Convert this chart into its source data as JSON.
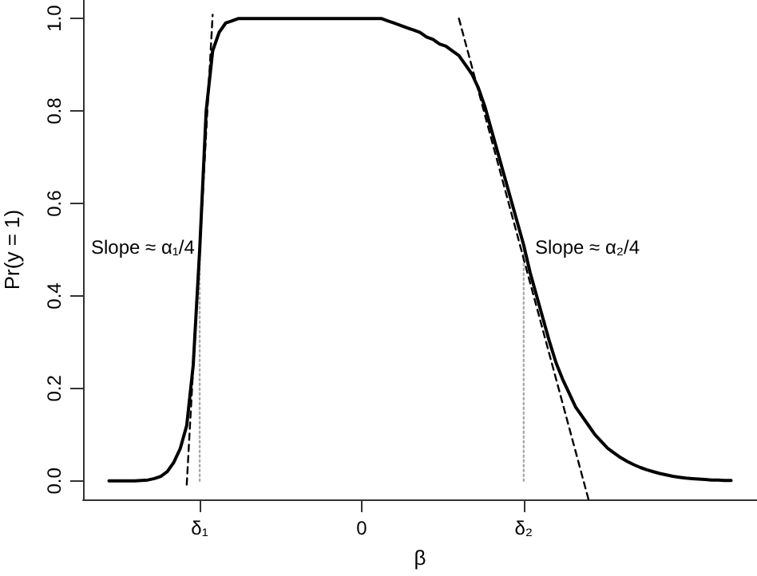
{
  "chart_data": {
    "type": "line",
    "xlabel": "β",
    "ylabel": "Pr(y = 1)",
    "categories": [
      null,
      null,
      null,
      null,
      null,
      null,
      null,
      null,
      null,
      null,
      null,
      null,
      null,
      null,
      null,
      null,
      null,
      null,
      "δ₁",
      null,
      null,
      null,
      null,
      null,
      null,
      null,
      null,
      null,
      null,
      null,
      null,
      null,
      null,
      null,
      null,
      null,
      null,
      null,
      null,
      null,
      null,
      null,
      null,
      "0",
      null,
      null,
      null,
      null,
      null,
      null,
      null,
      null,
      null,
      null,
      null,
      null,
      null,
      null,
      null,
      null,
      null,
      null,
      null,
      null,
      null,
      null,
      null,
      null,
      "δ₂",
      null,
      null,
      null,
      null,
      null,
      null,
      null,
      null,
      null,
      null,
      null,
      null,
      null,
      null,
      null,
      null,
      null,
      null,
      null,
      null,
      null,
      null,
      null,
      null,
      null,
      null,
      null,
      null,
      null,
      null,
      null,
      null,
      null,
      null,
      null,
      null
    ],
    "ylim": [
      -0.04,
      1.04
    ],
    "yticks": [
      {
        "value": 0,
        "label": "0.0"
      },
      0.2,
      0.4,
      0.6,
      0.8,
      {
        "value": 1,
        "label": "1.0"
      }
    ],
    "grid": false,
    "marker": "none",
    "series": [
      {
        "color": "#000000",
        "line_style": "solid",
        "values": [
          null,
          null,
          null,
          null,
          0,
          0,
          0,
          0,
          0,
          0.001,
          0.002,
          0.005,
          0.01,
          0.02,
          0.04,
          0.07,
          0.12,
          0.25,
          0.5,
          0.8,
          0.93,
          0.97,
          0.99,
          0.995,
          1,
          1,
          1,
          1,
          1,
          1,
          1,
          1,
          1,
          1,
          1,
          1,
          1,
          1,
          1,
          1,
          1,
          1,
          1,
          1,
          1,
          1,
          1,
          0.995,
          0.99,
          0.985,
          0.98,
          0.975,
          0.97,
          0.96,
          0.955,
          0.945,
          0.94,
          0.93,
          0.92,
          0.9,
          0.88,
          0.85,
          0.81,
          0.76,
          0.71,
          0.66,
          0.61,
          0.56,
          0.51,
          0.45,
          0.4,
          0.35,
          0.3,
          0.255,
          0.22,
          0.19,
          0.16,
          0.14,
          0.12,
          0.1,
          0.085,
          0.07,
          0.06,
          0.05,
          0.042,
          0.035,
          0.029,
          0.024,
          0.02,
          0.016,
          0.013,
          0.01,
          0.008,
          0.006,
          0.005,
          0.004,
          0.003,
          0.002,
          0.002,
          0.001,
          0.001,
          null,
          null,
          null,
          null
        ]
      },
      {
        "color": "#000000",
        "line_style": "dashed",
        "values": [
          null,
          null,
          null,
          null,
          null,
          null,
          null,
          null,
          null,
          null,
          null,
          null,
          null,
          null,
          null,
          null,
          -0.008,
          0.246,
          0.5,
          0.754,
          1.008,
          null,
          null,
          null,
          null,
          null,
          null,
          null,
          null,
          null,
          null,
          null,
          null,
          null,
          null,
          null,
          null,
          null,
          null,
          null,
          null,
          null,
          null,
          null,
          null,
          null,
          null,
          null,
          null,
          null,
          null,
          null,
          null,
          null,
          null,
          null,
          null,
          null,
          null,
          null,
          null,
          null,
          null,
          null,
          null,
          null,
          null,
          null,
          null,
          null,
          null,
          null,
          null,
          null,
          null,
          null,
          null,
          null,
          null,
          null,
          null,
          null,
          null,
          null,
          null,
          null,
          null,
          null,
          null,
          null,
          null,
          null,
          null,
          null,
          null,
          null,
          null,
          null,
          null,
          null,
          null,
          null,
          null,
          null,
          null
        ]
      },
      {
        "color": "#000000",
        "line_style": "dashed",
        "values": [
          null,
          null,
          null,
          null,
          null,
          null,
          null,
          null,
          null,
          null,
          null,
          null,
          null,
          null,
          null,
          null,
          null,
          null,
          null,
          null,
          null,
          null,
          null,
          null,
          null,
          null,
          null,
          null,
          null,
          null,
          null,
          null,
          null,
          null,
          null,
          null,
          null,
          null,
          null,
          null,
          null,
          null,
          null,
          null,
          null,
          null,
          null,
          null,
          null,
          null,
          null,
          null,
          null,
          null,
          null,
          null,
          null,
          null,
          1.0,
          null,
          null,
          null,
          null,
          0.74,
          null,
          null,
          null,
          null,
          0.48,
          null,
          null,
          null,
          null,
          0.22,
          null,
          null,
          null,
          null,
          -0.04,
          null,
          null,
          null,
          null,
          null,
          null,
          null,
          null,
          null,
          null,
          null,
          null,
          null,
          null,
          null,
          null,
          null,
          null,
          null,
          null,
          null,
          null,
          null,
          null,
          null,
          null
        ]
      },
      {
        "color": "#aaaaaa",
        "line_style": "dotted",
        "x": [
          "δ₁",
          "δ₁"
        ],
        "values": [
          0,
          0.5
        ]
      },
      {
        "color": "#aaaaaa",
        "line_style": "dotted",
        "x": [
          "δ₂",
          "δ₂"
        ],
        "values": [
          0,
          0.5
        ]
      }
    ],
    "annotations": [
      "Slope ≈ α₁/4",
      "Slope ≈ α₂/4"
    ]
  }
}
